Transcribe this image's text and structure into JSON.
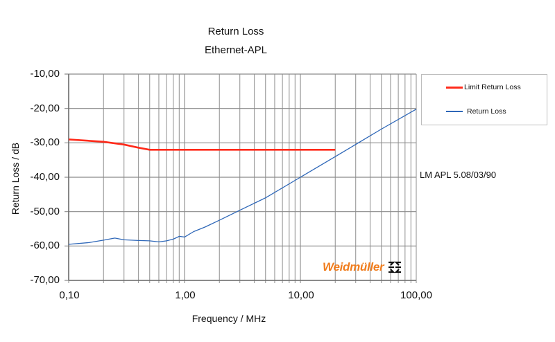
{
  "chart": {
    "title": "Return Loss",
    "subtitle": "Ethernet-APL",
    "xlabel": "Frequency / MHz",
    "ylabel": "Return Loss / dB",
    "y_ticks": [
      "-10,00",
      "-20,00",
      "-30,00",
      "-40,00",
      "-50,00",
      "-60,00",
      "-70,00"
    ],
    "x_ticks": [
      "0,10",
      "1,00",
      "10,00",
      "100,00"
    ],
    "legend": [
      {
        "label": "Limit Return Loss",
        "color": "#ff2a1a"
      },
      {
        "label": "Return Loss",
        "color": "#2e67b8"
      }
    ],
    "note": "LM APL 5.08/03/90",
    "logo_text": "Weidmüller",
    "logo_color": "#f07d1e"
  },
  "chart_data": {
    "type": "line",
    "title": "Return Loss",
    "subtitle": "Ethernet-APL",
    "xlabel": "Frequency / MHz",
    "ylabel": "Return Loss / dB",
    "x_scale": "log",
    "xlim": [
      0.1,
      100
    ],
    "ylim": [
      -70,
      -10
    ],
    "grid": true,
    "legend_position": "right",
    "annotations": [
      "LM APL 5.08/03/90",
      "Weidmüller"
    ],
    "series": [
      {
        "name": "Limit Return Loss",
        "color": "#ff2a1a",
        "x": [
          0.1,
          0.2,
          0.3,
          0.4,
          0.5,
          0.6,
          1,
          5,
          10,
          20
        ],
        "y": [
          -29.0,
          -29.7,
          -30.5,
          -31.4,
          -32.0,
          -32.0,
          -32.0,
          -32.0,
          -32.0,
          -32.0
        ]
      },
      {
        "name": "Return Loss",
        "color": "#2e67b8",
        "x": [
          0.1,
          0.15,
          0.2,
          0.25,
          0.3,
          0.4,
          0.5,
          0.6,
          0.7,
          0.8,
          0.9,
          1.0,
          1.2,
          1.5,
          2,
          3,
          5,
          10,
          20,
          50,
          100
        ],
        "y": [
          -59.5,
          -59.0,
          -58.3,
          -57.7,
          -58.2,
          -58.4,
          -58.5,
          -58.8,
          -58.5,
          -58.0,
          -57.2,
          -57.4,
          -55.8,
          -54.5,
          -52.5,
          -49.6,
          -46.0,
          -40.0,
          -34.0,
          -26.0,
          -20.2
        ]
      }
    ]
  }
}
